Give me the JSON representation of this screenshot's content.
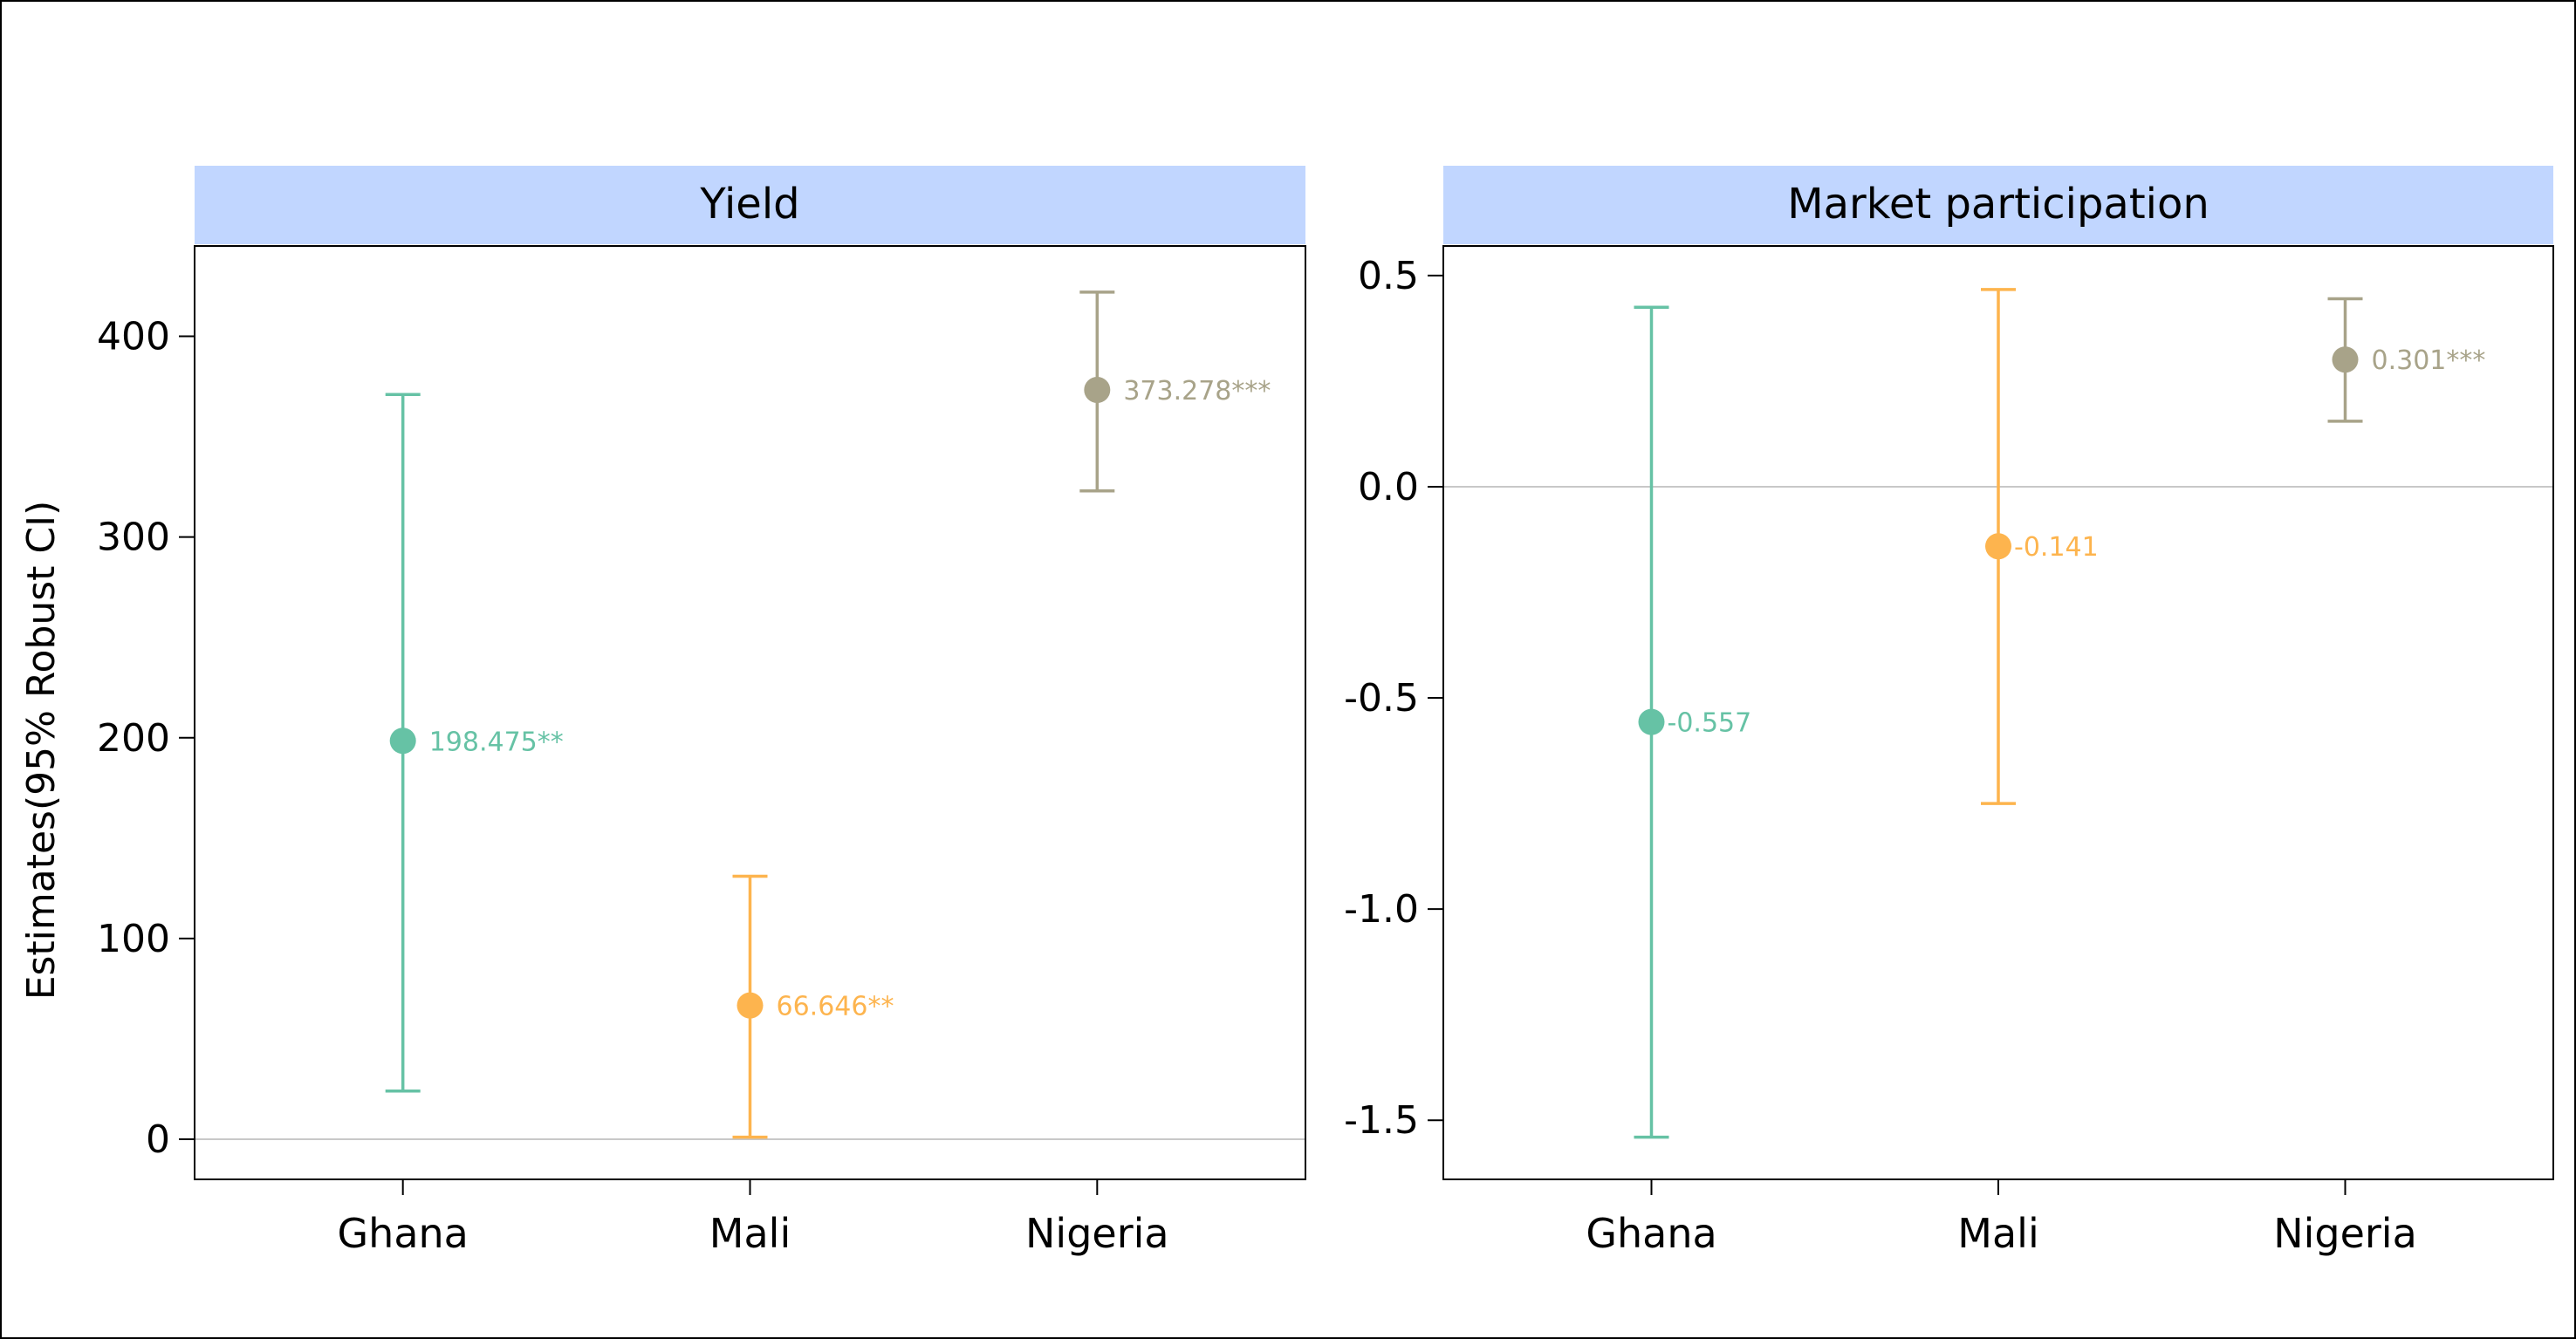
{
  "chart_data": [
    {
      "type": "scatter",
      "subtype": "point-range",
      "title": "Yield",
      "xlabel": "",
      "ylabel": "Estimates(95% Robust CI)",
      "categories": [
        "Ghana",
        "Mali",
        "Nigeria"
      ],
      "values": [
        198.475,
        66.646,
        373.278
      ],
      "ci_low": [
        24,
        1,
        323
      ],
      "ci_high": [
        371,
        131,
        422
      ],
      "point_labels": [
        "198.475**",
        "66.646**",
        "373.278***"
      ],
      "colors": [
        "#66C2A5",
        "#FDB44E",
        "#A8A389"
      ],
      "ylim": [
        -20,
        445
      ],
      "yticks": [
        0,
        100,
        200,
        300,
        400
      ],
      "ytick_labels": [
        "0",
        "100",
        "200",
        "300",
        "400"
      ],
      "reference_line": 0
    },
    {
      "type": "scatter",
      "subtype": "point-range",
      "title": "Market participation",
      "xlabel": "",
      "ylabel": "",
      "categories": [
        "Ghana",
        "Mali",
        "Nigeria"
      ],
      "values": [
        -0.557,
        -0.141,
        0.301
      ],
      "ci_low": [
        -1.54,
        -0.75,
        0.155
      ],
      "ci_high": [
        0.425,
        0.467,
        0.445
      ],
      "point_labels": [
        "-0.557",
        "-0.141",
        "0.301***"
      ],
      "colors": [
        "#66C2A5",
        "#FDB44E",
        "#A8A389"
      ],
      "ylim": [
        -1.64,
        0.57
      ],
      "yticks": [
        0.5,
        0.0,
        -0.5,
        -1.0,
        -1.5
      ],
      "ytick_labels": [
        "0.5",
        "0.0",
        "-0.5",
        "-1.0",
        "-1.5"
      ],
      "reference_line": 0
    }
  ],
  "style": {
    "strip_fill": "#C1D6FF",
    "reference_line_color": "#C8C8C8"
  }
}
